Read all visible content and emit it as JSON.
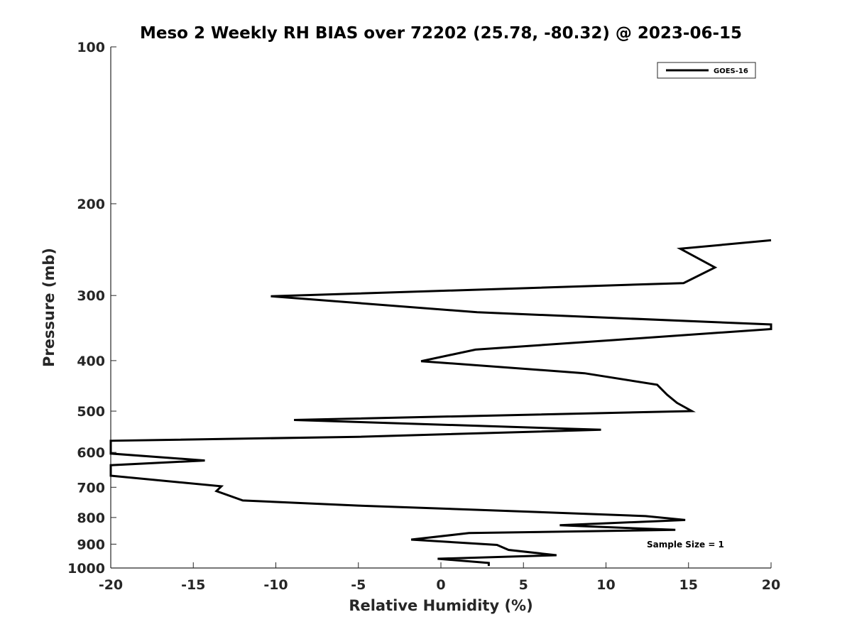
{
  "chart_data": {
    "type": "line",
    "title": "Meso 2 Weekly RH BIAS over 72202 (25.78, -80.32) @ 2023-06-15",
    "xlabel": "Relative Humidity (%)",
    "ylabel": "Pressure (mb)",
    "xlim": [
      -20,
      20
    ],
    "ylim": [
      100,
      1000
    ],
    "y_scale": "log",
    "y_reversed": true,
    "grid": false,
    "legend_position": "top-right",
    "x_ticks": [
      "-20",
      "-15",
      "-10",
      "-5",
      "0",
      "5",
      "10",
      "15",
      "20"
    ],
    "y_ticks": [
      "100",
      "200",
      "300",
      "400",
      "500",
      "600",
      "700",
      "800",
      "900",
      "1000"
    ],
    "annotation": "Sample Size = 1",
    "series": [
      {
        "name": "GOES-16",
        "color": "#000000",
        "x": [
          20,
          14.5,
          16.6,
          14.7,
          -10.3,
          2.2,
          20,
          20,
          10.6,
          2.1,
          -1.2,
          8.7,
          13.1,
          13.7,
          14.3,
          15.2,
          -8.9,
          9.7,
          -5.0,
          -20.0,
          -20.0,
          -14.3,
          -20.0,
          -20.0,
          -13.3,
          -13.6,
          -12.0,
          -5.0,
          3.0,
          12.4,
          14.8,
          7.2,
          14.2,
          1.7,
          -1.8,
          3.4,
          4.1,
          7.0,
          -0.2,
          2.9,
          2.9
        ],
        "y": [
          235,
          244,
          265,
          284,
          301,
          323,
          341,
          348,
          365,
          381,
          401,
          423,
          445,
          465,
          482,
          500,
          520,
          543,
          560,
          570,
          603,
          622,
          635,
          665,
          697,
          712,
          742,
          759,
          775,
          795,
          809,
          828,
          845,
          857,
          882,
          903,
          923,
          945,
          960,
          978,
          991
        ]
      }
    ]
  }
}
